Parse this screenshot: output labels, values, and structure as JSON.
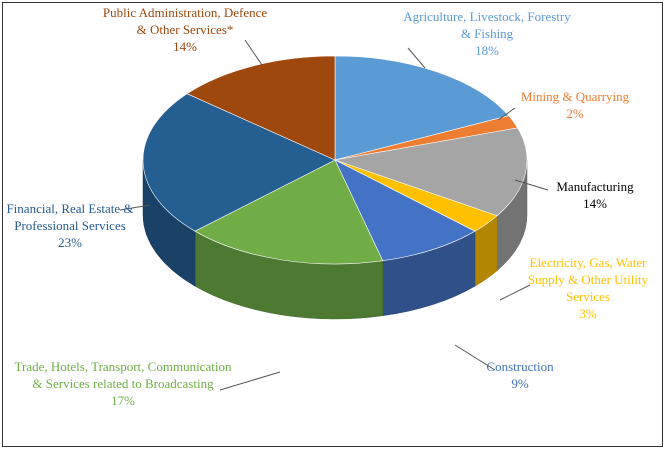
{
  "chart_data": {
    "type": "pie",
    "categories": [
      "Agriculture, Livestock, Forestry & Fishing",
      "Mining & Quarrying",
      "Manufacturing",
      "Electricity, Gas, Water Supply & Other Utility Services",
      "Construction",
      "Trade, Hotels, Transport, Communication & Services related to Broadcasting",
      "Financial, Real Estate & Professional Services",
      "Public Administration, Defence & Other Services*"
    ],
    "values": [
      18,
      2,
      14,
      3,
      9,
      17,
      23,
      14
    ],
    "value_labels": [
      "18%",
      "2%",
      "14%",
      "3%",
      "9%",
      "17%",
      "23%",
      "14%"
    ],
    "colors": [
      "#5b9bd5",
      "#ed7d31",
      "#a5a5a5",
      "#ffc000",
      "#4472c4",
      "#70ad47",
      "#255e91",
      "#9e480e"
    ],
    "label_colors": [
      "#5b9bd5",
      "#ed7d31",
      "#000000",
      "#ffc000",
      "#4472c4",
      "#70ad47",
      "#255e91",
      "#9e480e"
    ]
  }
}
